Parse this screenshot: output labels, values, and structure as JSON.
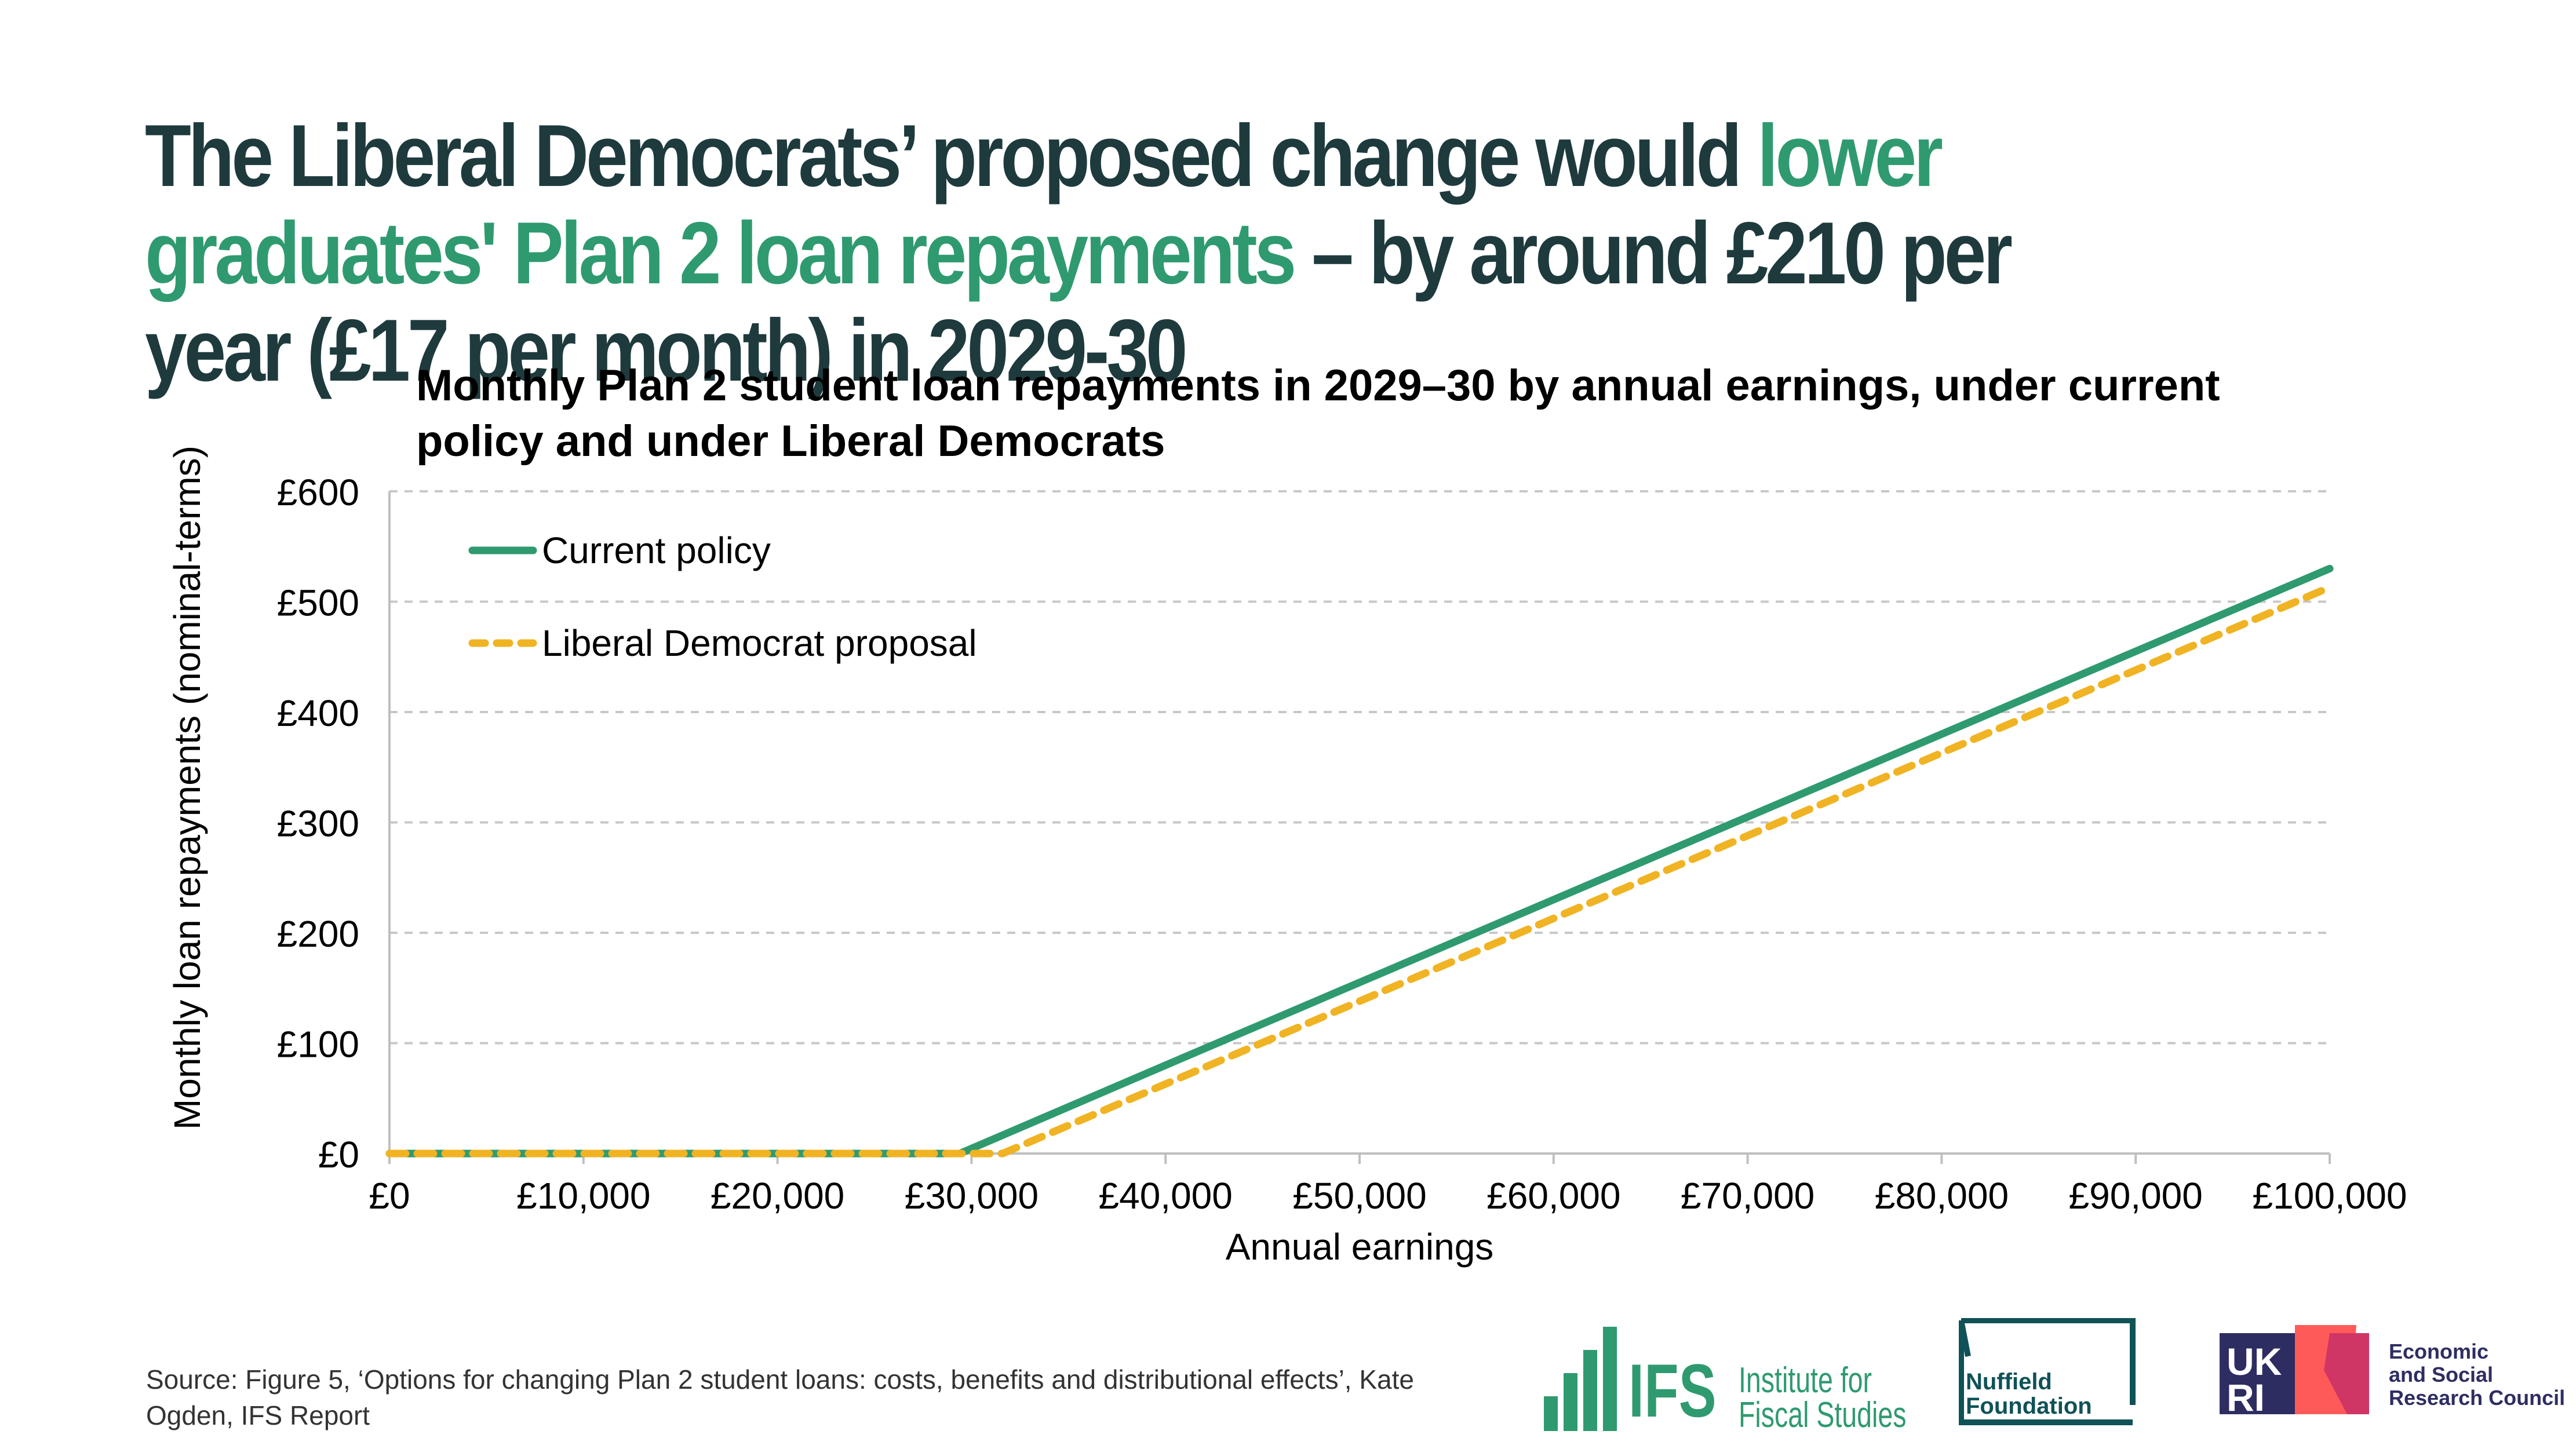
{
  "headline": {
    "part1": "The Liberal Democrats’ proposed change would ",
    "highlight1": "lower graduates' Plan 2 loan repayments",
    "part2": " – by around £210 per year (£17 per month) in 2029-30"
  },
  "colors": {
    "current_policy": "#2f9a6f",
    "lib_dem": "#f0b323",
    "headline_dark": "#1e3a3d",
    "headline_green": "#2f9a6f",
    "grid": "#c8c8c8"
  },
  "chart_data": {
    "type": "line",
    "title": "Monthly Plan 2 student loan repayments in 2029–30 by annual earnings, under current policy and under Liberal Democrats",
    "xlabel": "Annual earnings",
    "ylabel": "Monthly loan repayments (nominal-terms)",
    "xlim": [
      0,
      100000
    ],
    "ylim": [
      0,
      600
    ],
    "xticks": [
      0,
      10000,
      20000,
      30000,
      40000,
      50000,
      60000,
      70000,
      80000,
      90000,
      100000
    ],
    "xtick_labels": [
      "£0",
      "£10,000",
      "£20,000",
      "£30,000",
      "£40,000",
      "£50,000",
      "£60,000",
      "£70,000",
      "£80,000",
      "£90,000",
      "£100,000"
    ],
    "yticks": [
      0,
      100,
      200,
      300,
      400,
      500,
      600
    ],
    "ytick_labels": [
      "£0",
      "£100",
      "£200",
      "£300",
      "£400",
      "£500",
      "£600"
    ],
    "grid": "horizontal dashed",
    "legend_position": "top-left",
    "series": [
      {
        "name": "Current policy",
        "style": "solid",
        "x": [
          0,
          29400,
          40000,
          50000,
          60000,
          70000,
          80000,
          90000,
          100000
        ],
        "y": [
          0,
          0,
          80,
          155,
          230,
          305,
          380,
          455,
          530
        ]
      },
      {
        "name": "Liberal Democrat proposal",
        "style": "dashed",
        "x": [
          0,
          31600,
          40000,
          50000,
          60000,
          70000,
          80000,
          90000,
          100000
        ],
        "y": [
          0,
          0,
          63,
          138,
          213,
          288,
          363,
          438,
          513
        ]
      }
    ]
  },
  "source": "Source: Figure 5, ‘Options for changing Plan 2 student loans: costs, benefits and distributional effects’, Kate Ogden, IFS Report",
  "logos": {
    "ifs_abbr": "IFS",
    "ifs_line1": "Institute for",
    "ifs_line2": "Fiscal Studies",
    "nuffield_line1": "Nuffield",
    "nuffield_line2": "Foundation",
    "ukri_text": "UKRI",
    "esrc_line1": "Economic",
    "esrc_line2": "and Social",
    "esrc_line3": "Research Council"
  }
}
